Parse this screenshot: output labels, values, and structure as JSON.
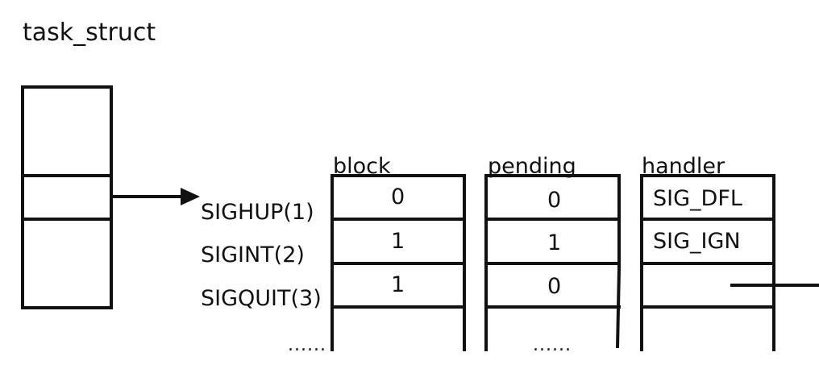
{
  "title": "task_struct",
  "signals": [
    "SIGHUP(1)",
    "SIGINT(2)",
    "SIGQUIT(3)"
  ],
  "signals_ellipsis": "......",
  "columns": {
    "block": {
      "label": "block",
      "values": [
        "0",
        "1",
        "1"
      ]
    },
    "pending": {
      "label": "pending",
      "values": [
        "0",
        "1",
        "0"
      ],
      "ellipsis": "......"
    },
    "handler": {
      "label": "handler",
      "values": [
        "SIG_DFL",
        "SIG_IGN",
        ""
      ]
    }
  },
  "colors": {
    "stroke": "#111111",
    "background": "#ffffff"
  }
}
